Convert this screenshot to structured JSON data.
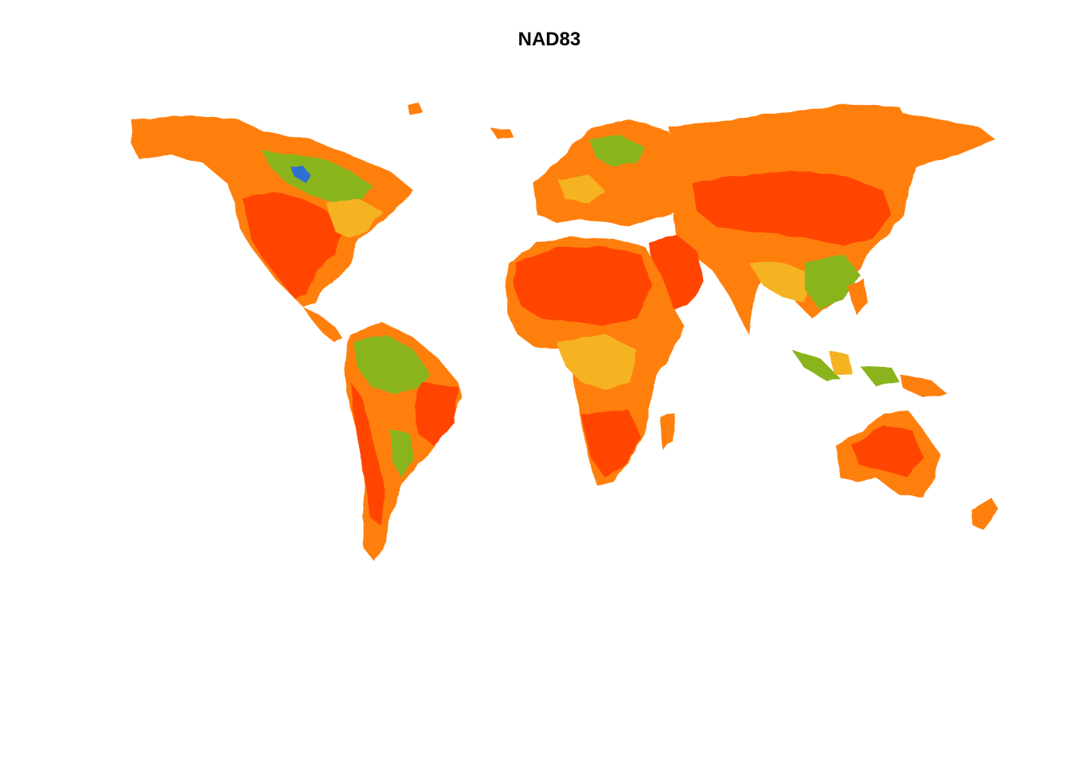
{
  "title": "NAD83",
  "colors": {
    "hot": "#ff4500",
    "warm": "#ff7f0e",
    "mild": "#f5b324",
    "cool": "#8ab41e",
    "cold": "#2e6fd1"
  }
}
